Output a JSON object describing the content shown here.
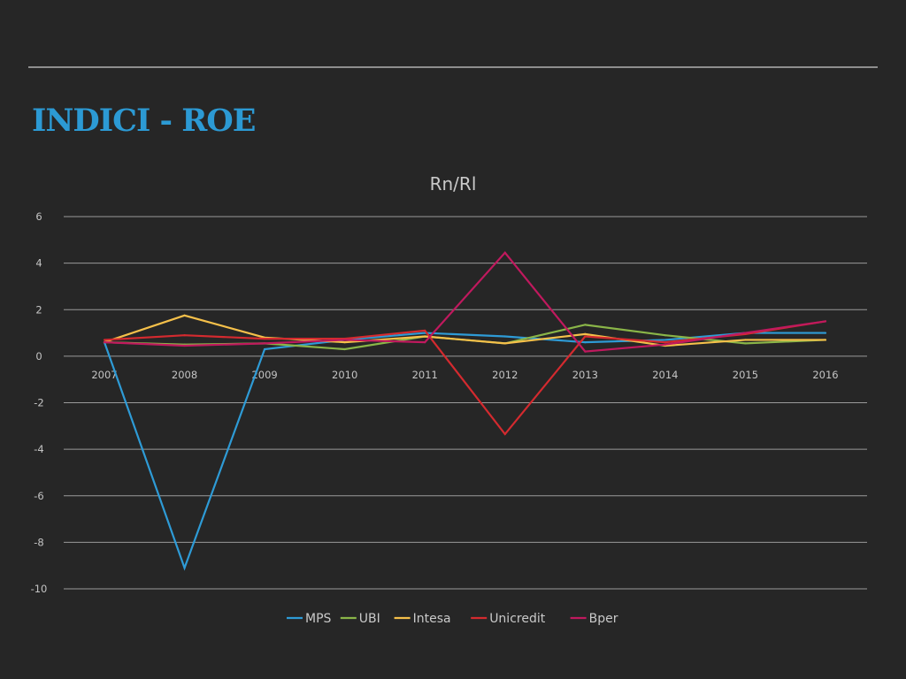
{
  "slide": {
    "title": "INDICI - ROE"
  },
  "colors": {
    "background": "#262626",
    "title": "#2c9ad4",
    "gridline": "#9a9a9a",
    "text": "#c4c4c4"
  },
  "chart_data": {
    "type": "line",
    "title": "Rn/Rl",
    "xlabel": "",
    "ylabel": "",
    "categories": [
      "2007",
      "2008",
      "2009",
      "2010",
      "2011",
      "2012",
      "2013",
      "2014",
      "2015",
      "2016"
    ],
    "ylim": [
      -10,
      6
    ],
    "yticks": [
      6,
      4,
      2,
      0,
      -2,
      -4,
      -6,
      -8,
      -10
    ],
    "grid": true,
    "legend_position": "bottom",
    "series": [
      {
        "name": "MPS",
        "color": "#2e9bd6",
        "values": [
          0.6,
          -9.1,
          0.3,
          0.7,
          1.0,
          0.85,
          0.6,
          0.7,
          1.0,
          1.0
        ]
      },
      {
        "name": "UBI",
        "color": "#8ab548",
        "values": [
          0.6,
          0.5,
          0.55,
          0.3,
          0.85,
          0.55,
          1.35,
          0.9,
          0.55,
          0.7
        ]
      },
      {
        "name": "Intesa",
        "color": "#f5c04a",
        "values": [
          0.6,
          1.75,
          0.8,
          0.6,
          0.85,
          0.55,
          0.95,
          0.45,
          0.7,
          0.7
        ]
      },
      {
        "name": "Unicredit",
        "color": "#d42a2f",
        "values": [
          0.7,
          0.9,
          0.75,
          0.75,
          1.1,
          -3.35,
          0.85,
          0.6,
          0.95,
          1.5
        ]
      },
      {
        "name": "Bper",
        "color": "#c0195e",
        "values": [
          0.6,
          0.45,
          0.55,
          0.7,
          0.6,
          4.45,
          0.2,
          0.5,
          1.0,
          1.5
        ]
      }
    ]
  }
}
